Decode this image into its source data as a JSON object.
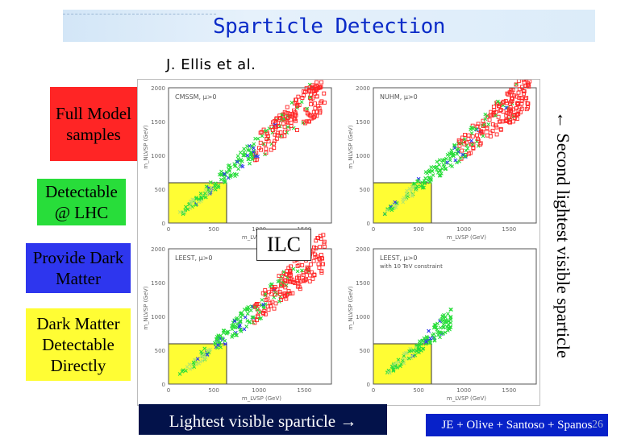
{
  "header": {
    "title": "Sparticle Detection"
  },
  "author": "J. Ellis et al.",
  "labels": {
    "full_model": "Full Model samples",
    "detectable": "Detectable @ LHC",
    "dark_matter": "Provide Dark Matter",
    "dm_direct": "Dark Matter Detectable Directly",
    "ilc": "ILC",
    "second_lightest": "← Second lightest visible sparticle",
    "lightest": "Lightest visible sparticle →",
    "credit": "JE + Olive + Santoso + Spanos",
    "page": "26"
  },
  "panels": [
    {
      "title": "CMSSM, μ>0",
      "xlabel": "m_LVSP (GeV)",
      "ylabel": "m_NLVSP (GeV)",
      "xticks": [
        "0",
        "500",
        "1000",
        "1500"
      ],
      "yticks": [
        "2000",
        "1500",
        "1000",
        "500",
        "0"
      ]
    },
    {
      "title": "NUHM, μ>0",
      "xlabel": "m_LVSP (GeV)",
      "ylabel": "m_NLVSP (GeV)",
      "xticks": [
        "0",
        "500",
        "1000",
        "1500"
      ],
      "yticks": [
        "2000",
        "1500",
        "1000",
        "500",
        "0"
      ]
    },
    {
      "title": "LEEST, μ>0",
      "xlabel": "m_LVSP (GeV)",
      "ylabel": "m_NLVSP (GeV)",
      "xticks": [
        "0",
        "500",
        "1000",
        "1500"
      ],
      "yticks": [
        "2000",
        "1500",
        "1000",
        "500",
        "0"
      ]
    },
    {
      "title": "LEEST, μ>0",
      "subtitle": "with 10 TeV constraint",
      "xlabel": "m_LVSP (GeV)",
      "ylabel": "m_NLVSP (GeV)",
      "xticks": [
        "0",
        "500",
        "1000",
        "1500"
      ],
      "yticks": [
        "2000",
        "1500",
        "1000",
        "500",
        "0"
      ]
    }
  ],
  "colors": {
    "red": "#ff2525",
    "green": "#28dd3a",
    "blue": "#2e36ee",
    "yellow": "#fffd34",
    "title": "#0a2bc8",
    "bottom_bar": "#03124a",
    "credit_bar": "#0721c9"
  }
}
